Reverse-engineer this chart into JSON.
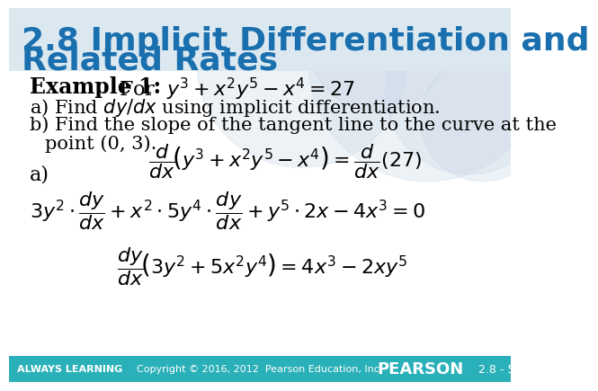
{
  "title_line1": "2.8 Implicit Differentiation and",
  "title_line2": "Related Rates",
  "title_color": "#1a6faf",
  "title_fontsize": 26,
  "bg_color": "#ffffff",
  "header_bg": "#dce8f0",
  "footer_bg": "#2ab0b8",
  "footer_text_color": "#ffffff",
  "footer_left": "ALWAYS LEARNING",
  "footer_center": "Copyright © 2016, 2012  Pearson Education, Inc.",
  "footer_right": "PEARSON",
  "footer_page": "2.8 - 5",
  "watermark_color": "#cddae8",
  "body_fontsize": 16,
  "math_fontsize": 15
}
